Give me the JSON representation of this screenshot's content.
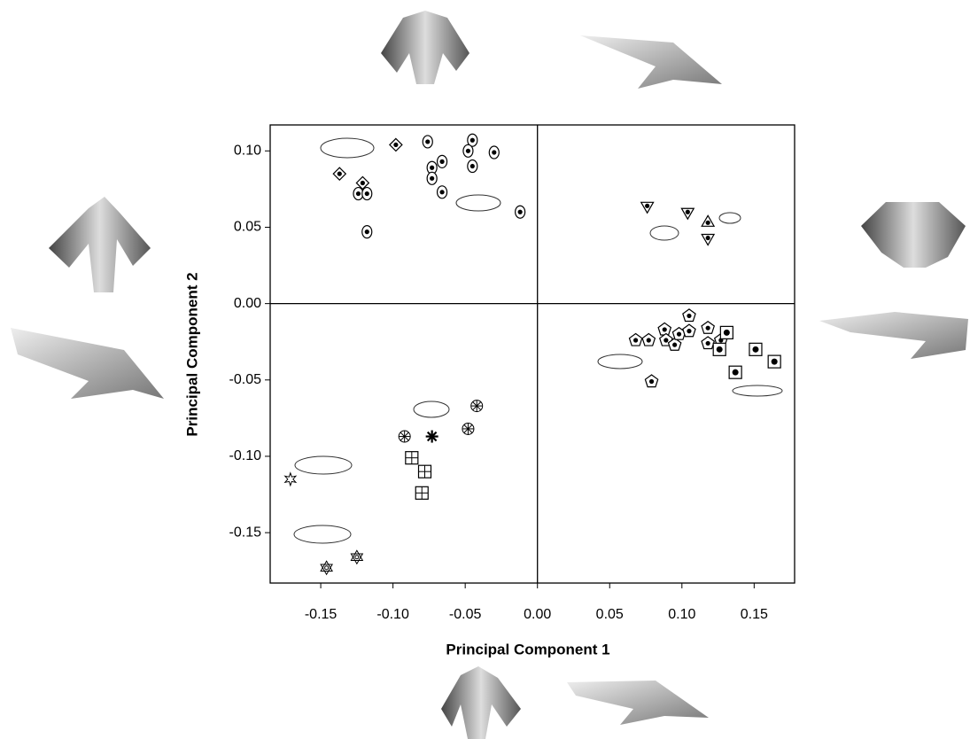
{
  "chart_data": {
    "type": "scatter",
    "x_label": "Principal Component 1",
    "y_label": "Principal Component 2",
    "xlim": [
      -0.185,
      0.178
    ],
    "ylim": [
      -0.183,
      0.117
    ],
    "xticks": [
      {
        "value": -0.15,
        "label": "-0.15"
      },
      {
        "value": -0.1,
        "label": "-0.10"
      },
      {
        "value": -0.05,
        "label": "-0.05"
      },
      {
        "value": 0,
        "label": "0.00"
      },
      {
        "value": 0.05,
        "label": "0.05"
      },
      {
        "value": 0.1,
        "label": "0.10"
      },
      {
        "value": 0.15,
        "label": "0.15"
      }
    ],
    "yticks": [
      {
        "value": 0.1,
        "label": "0.10"
      },
      {
        "value": 0.05,
        "label": "0.05"
      },
      {
        "value": 0,
        "label": "0.00"
      },
      {
        "value": -0.05,
        "label": "-0.05"
      },
      {
        "value": -0.1,
        "label": "-0.10"
      },
      {
        "value": -0.15,
        "label": "-0.15"
      }
    ],
    "color": "#000000",
    "series": [
      {
        "marker": "diamond-dot",
        "x": [
          -0.098,
          -0.137,
          -0.121
        ],
        "y": [
          0.104,
          0.085,
          0.079
        ]
      },
      {
        "marker": "ellipse-dot",
        "x": [
          -0.076,
          -0.045,
          -0.048,
          -0.03,
          -0.066,
          -0.073,
          -0.045,
          -0.073,
          -0.066,
          -0.124,
          -0.118,
          -0.118,
          -0.012
        ],
        "y": [
          0.106,
          0.107,
          0.1,
          0.099,
          0.093,
          0.089,
          0.09,
          0.082,
          0.073,
          0.072,
          0.072,
          0.047,
          0.06
        ]
      },
      {
        "marker": "triangle-down-dot",
        "x": [
          0.076,
          0.104,
          0.118
        ],
        "y": [
          0.064,
          0.06,
          0.043
        ]
      },
      {
        "marker": "triangle-up-dot",
        "x": [
          0.118
        ],
        "y": [
          0.053
        ]
      },
      {
        "marker": "pentagon-dot",
        "x": [
          0.068,
          0.077,
          0.088,
          0.089,
          0.095,
          0.098,
          0.105,
          0.105,
          0.118,
          0.118,
          0.127,
          0.079
        ],
        "y": [
          -0.024,
          -0.024,
          -0.017,
          -0.024,
          -0.027,
          -0.02,
          -0.008,
          -0.018,
          -0.016,
          -0.026,
          -0.024,
          -0.051
        ]
      },
      {
        "marker": "square-dot",
        "x": [
          0.126,
          0.131,
          0.151,
          0.164,
          0.137
        ],
        "y": [
          -0.03,
          -0.019,
          -0.03,
          -0.038,
          -0.045
        ]
      },
      {
        "marker": "circle-asterisk",
        "x": [
          -0.092,
          -0.048,
          -0.042
        ],
        "y": [
          -0.087,
          -0.082,
          -0.067
        ]
      },
      {
        "marker": "asterisk",
        "x": [
          -0.073
        ],
        "y": [
          -0.087
        ]
      },
      {
        "marker": "square-plus",
        "x": [
          -0.087,
          -0.078,
          -0.08
        ],
        "y": [
          -0.101,
          -0.11,
          -0.124
        ]
      },
      {
        "marker": "star",
        "x": [
          -0.171
        ],
        "y": [
          -0.115
        ]
      },
      {
        "marker": "hexagram",
        "x": [
          -0.146,
          -0.125
        ],
        "y": [
          -0.173,
          -0.166
        ]
      }
    ]
  }
}
